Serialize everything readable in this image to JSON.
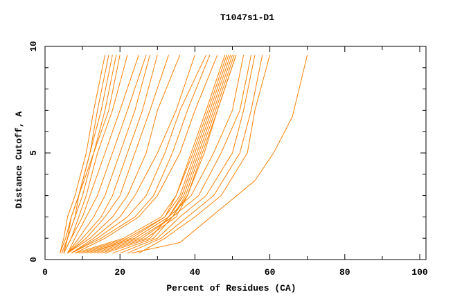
{
  "chart_data": {
    "type": "line",
    "title": "T1047s1-D1",
    "xlabel": "Percent of Residues (CA)",
    "ylabel": "Distance Cutoff, A",
    "xlim": [
      0,
      100
    ],
    "ylim": [
      0,
      10
    ],
    "xticks": [
      0,
      20,
      40,
      60,
      80,
      100
    ],
    "yticks": [
      0,
      5,
      10
    ],
    "grid": false,
    "line_color": "#ff8000",
    "y": [
      0.3,
      1,
      2,
      3,
      5,
      7,
      9.6
    ],
    "series": [
      {
        "x": [
          4,
          5,
          6,
          8,
          11,
          13,
          16
        ]
      },
      {
        "x": [
          4,
          5.5,
          7,
          9,
          12,
          14,
          17
        ]
      },
      {
        "x": [
          4.5,
          6,
          7,
          9,
          12,
          15,
          18
        ]
      },
      {
        "x": [
          5,
          6,
          8,
          10,
          13,
          16,
          19
        ]
      },
      {
        "x": [
          5,
          6,
          8,
          9,
          13,
          17,
          20
        ]
      },
      {
        "x": [
          5,
          7,
          9,
          11,
          14,
          18,
          22
        ]
      },
      {
        "x": [
          5,
          7,
          10,
          12,
          16,
          20,
          25
        ]
      },
      {
        "x": [
          6,
          8,
          11,
          14,
          18,
          22,
          27
        ]
      },
      {
        "x": [
          6,
          9,
          13,
          16,
          20,
          24,
          28
        ]
      },
      {
        "x": [
          6,
          10,
          15,
          18,
          22,
          26,
          30
        ]
      },
      {
        "x": [
          6,
          11,
          16,
          20,
          24,
          28,
          33
        ]
      },
      {
        "x": [
          6,
          12,
          18,
          22,
          27,
          30,
          36
        ]
      },
      {
        "x": [
          7,
          13,
          20,
          24,
          30,
          35,
          40
        ]
      },
      {
        "x": [
          7,
          14,
          22,
          27,
          32,
          36,
          43
        ]
      },
      {
        "x": [
          7,
          15,
          24,
          29,
          34,
          38,
          44
        ]
      },
      {
        "x": [
          8,
          16,
          25,
          30,
          36,
          40,
          46
        ]
      },
      {
        "x": [
          8,
          21,
          31,
          35,
          39,
          43,
          48
        ]
      },
      {
        "x": [
          9,
          22,
          32,
          35,
          39.5,
          43.5,
          48.5
        ]
      },
      {
        "x": [
          10,
          23,
          32,
          36,
          40,
          44,
          49
        ]
      },
      {
        "x": [
          11,
          24,
          33,
          36.5,
          40.5,
          44.5,
          49.5
        ]
      },
      {
        "x": [
          12,
          24,
          33,
          37,
          41,
          45,
          50
        ]
      },
      {
        "x": [
          13,
          25,
          34,
          37.5,
          41.5,
          45.5,
          50.5
        ]
      },
      {
        "x": [
          14,
          26,
          34,
          38,
          42,
          46,
          51
        ]
      },
      {
        "x": [
          15,
          27,
          35,
          38,
          42.5,
          46,
          51
        ]
      },
      {
        "x": [
          16,
          28,
          33,
          39,
          45,
          50,
          53
        ]
      },
      {
        "x": [
          18,
          29,
          34,
          41,
          47,
          52,
          55
        ]
      },
      {
        "x": [
          20,
          30,
          36,
          43,
          50,
          53,
          56
        ]
      },
      {
        "x": [
          22,
          31,
          38,
          45,
          52,
          55,
          58
        ]
      },
      {
        "x": [
          25,
          32,
          40,
          47,
          54,
          56,
          60
        ]
      },
      {
        "x": [
          23,
          36,
          56,
          61,
          66,
          70
        ],
        "y": [
          0.3,
          0.8,
          3.7,
          5,
          6.7,
          9.6
        ]
      }
    ]
  }
}
